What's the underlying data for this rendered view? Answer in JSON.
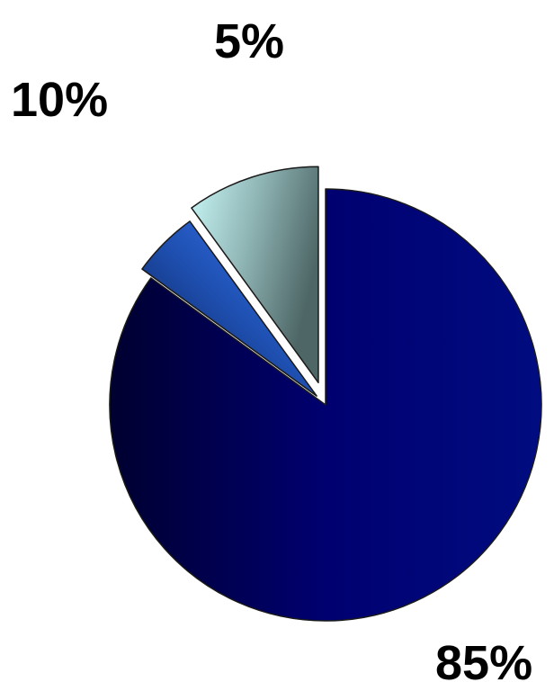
{
  "chart_data": {
    "type": "pie",
    "exploded": true,
    "series": [
      {
        "values": [
          85,
          5,
          10
        ],
        "labels": [
          "85%",
          "5%",
          "10%"
        ],
        "colors": {
          "85%": [
            "#000030",
            "#000070",
            "#000c80"
          ],
          "5%": [
            "#0a1a4a",
            "#1e4fb0",
            "#3f7fff"
          ],
          "10%": [
            "#c9f7f7",
            "#8fb4b4",
            "#4e6666"
          ]
        }
      }
    ],
    "title": "",
    "legend": "none"
  }
}
